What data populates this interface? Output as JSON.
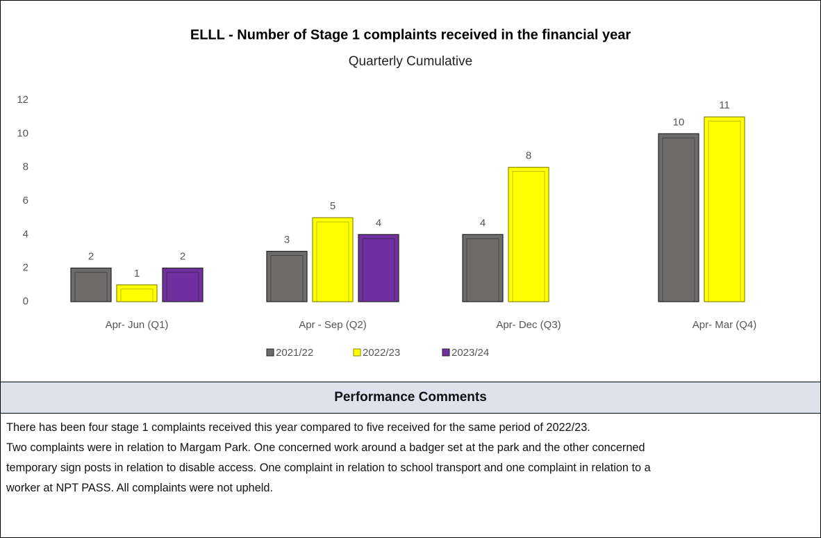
{
  "chart_data": {
    "type": "bar",
    "title": "ELLL - Number of Stage 1 complaints received in the financial year",
    "subtitle": "Quarterly Cumulative",
    "categories": [
      "Apr- Jun  (Q1)",
      "Apr - Sep  (Q2)",
      "Apr- Dec  (Q3)",
      "Apr- Mar  (Q4)"
    ],
    "series": [
      {
        "name": "2021/22",
        "color": "#6e6b6b",
        "values": [
          2,
          3,
          4,
          10
        ]
      },
      {
        "name": "2022/23",
        "color": "#ffff00",
        "values": [
          1,
          5,
          8,
          11
        ]
      },
      {
        "name": "2023/24",
        "color": "#7030a0",
        "values": [
          2,
          4,
          null,
          null
        ]
      }
    ],
    "ylim": [
      0,
      12
    ],
    "yticks": [
      0,
      2,
      4,
      6,
      8,
      10,
      12
    ],
    "grid": false,
    "legend": "bottom"
  },
  "comments": {
    "heading": "Performance Comments",
    "lines": [
      "There has been four stage 1 complaints received this year compared to five received for the same period of 2022/23.",
      "Two complaints were in relation to Margam Park. One concerned work around a badger set at the park and the other concerned",
      "temporary sign posts in relation to disable access. One complaint in relation to school transport and one complaint in relation to a",
      "worker at NPT PASS. All complaints were not upheld."
    ]
  }
}
